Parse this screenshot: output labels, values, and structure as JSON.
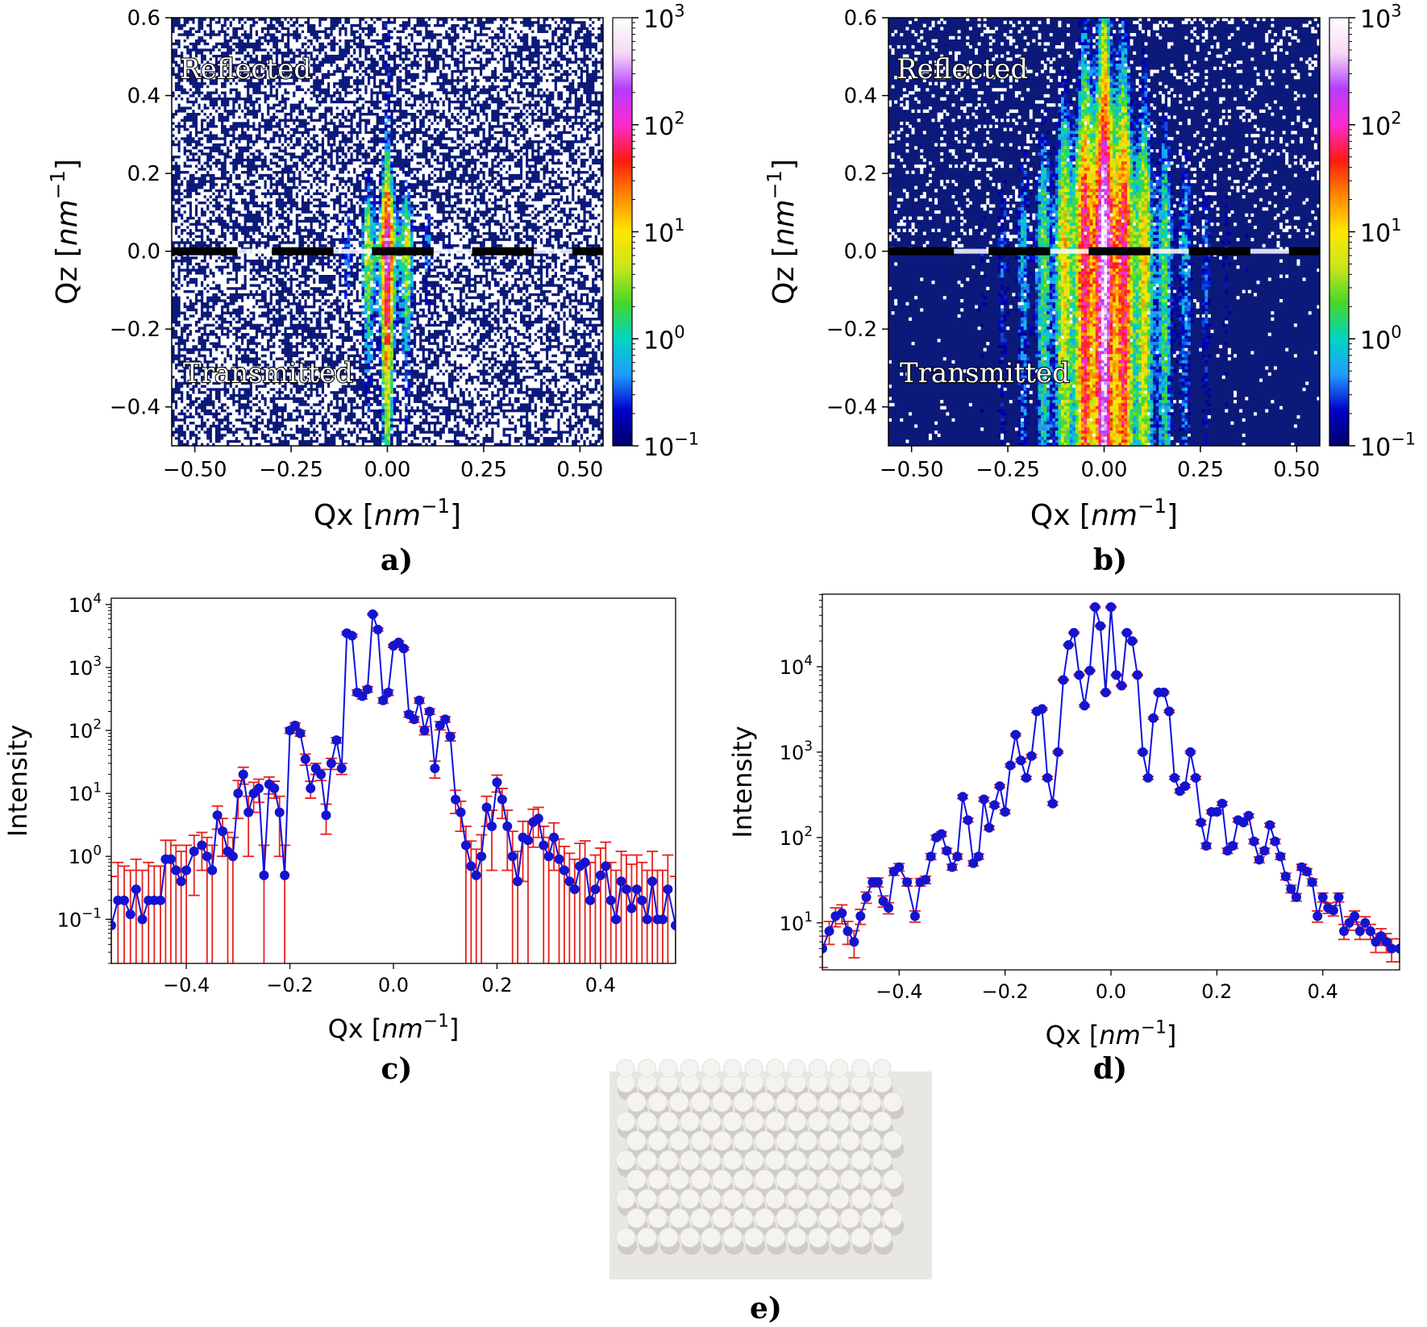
{
  "colors": {
    "scatter_background": "#0b1a7a",
    "noise": "#ffffff",
    "series_line": "#1010e0",
    "series_marker": "#1414d0",
    "errorbar": "#e8201c",
    "beamstop": "#000000"
  },
  "colorbar": {
    "stops": [
      "#00006a",
      "#0000cc",
      "#1f9bff",
      "#00d6c0",
      "#46d62a",
      "#c8e61a",
      "#ffe600",
      "#ff8a00",
      "#ff1a10",
      "#ff2ad0",
      "#b43cff",
      "#f5d8f5",
      "#ffffff"
    ],
    "tick_labels": [
      {
        "base": "10",
        "exp": "3"
      },
      {
        "base": "10",
        "exp": "2"
      },
      {
        "base": "10",
        "exp": "1"
      },
      {
        "base": "10",
        "exp": "0"
      },
      {
        "base": "10",
        "exp": "−1"
      }
    ]
  },
  "chart_data": [
    {
      "id": "a",
      "type": "heatmap",
      "panel_label": "a)",
      "xlabel": "Qx [",
      "xlabel_unit": "nm",
      "xlabel_exp": "−1",
      "xlabel_close": "]",
      "ylabel": "Qz [",
      "ylabel_unit": "nm",
      "ylabel_exp": "−1",
      "ylabel_close": "]",
      "xlim": [
        -0.56,
        0.56
      ],
      "ylim": [
        -0.5,
        0.6
      ],
      "xticks": [
        -0.5,
        -0.25,
        0.0,
        0.25,
        0.5
      ],
      "xtick_labels": [
        "−0.50",
        "−0.25",
        "0.00",
        "0.25",
        "0.50"
      ],
      "yticks": [
        0.6,
        0.4,
        0.2,
        0.0,
        -0.2,
        -0.4
      ],
      "ytick_labels": [
        "0.6",
        "0.4",
        "0.2",
        "0.0",
        "−0.2",
        "−0.4"
      ],
      "annotations": [
        "Reflected",
        "Transmitted"
      ],
      "colorbar_range": [
        0.1,
        1000
      ],
      "scale": "log",
      "peak_intensity": 320,
      "streak_spacing": 0.053,
      "noise_fraction": 0.42
    },
    {
      "id": "b",
      "type": "heatmap",
      "panel_label": "b)",
      "xlabel": "Qx [",
      "xlabel_unit": "nm",
      "xlabel_exp": "−1",
      "xlabel_close": "]",
      "ylabel": "Qz [",
      "ylabel_unit": "nm",
      "ylabel_exp": "−1",
      "ylabel_close": "]",
      "xlim": [
        -0.56,
        0.56
      ],
      "ylim": [
        -0.5,
        0.6
      ],
      "xticks": [
        -0.5,
        -0.25,
        0.0,
        0.25,
        0.5
      ],
      "xtick_labels": [
        "−0.50",
        "−0.25",
        "0.00",
        "0.25",
        "0.50"
      ],
      "yticks": [
        0.6,
        0.4,
        0.2,
        0.0,
        -0.2,
        -0.4
      ],
      "ytick_labels": [
        "0.6",
        "0.4",
        "0.2",
        "0.0",
        "−0.2",
        "−0.4"
      ],
      "annotations": [
        "Reflected",
        "Transmitted"
      ],
      "colorbar_range": [
        0.1,
        1000
      ],
      "scale": "log",
      "peak_intensity": 1000,
      "streak_spacing": 0.053,
      "noise_fraction": 0.12
    },
    {
      "id": "c",
      "type": "line",
      "panel_label": "c)",
      "xlabel": "Qx [",
      "xlabel_unit": "nm",
      "xlabel_exp": "−1",
      "xlabel_close": "]",
      "ylabel": "Intensity",
      "yscale": "log",
      "xlim": [
        -0.545,
        0.545
      ],
      "ylim_log10": [
        -1.7,
        4.1
      ],
      "xticks": [
        -0.4,
        -0.2,
        0.0,
        0.2,
        0.4
      ],
      "xtick_labels": [
        "−0.4",
        "−0.2",
        "0.0",
        "0.2",
        "0.4"
      ],
      "yticks_log10": [
        4,
        3,
        2,
        1,
        0,
        -1
      ],
      "ytick_labels": [
        {
          "base": "10",
          "exp": "4"
        },
        {
          "base": "10",
          "exp": "3"
        },
        {
          "base": "10",
          "exp": "2"
        },
        {
          "base": "10",
          "exp": "1"
        },
        {
          "base": "10",
          "exp": "0"
        },
        {
          "base": "10",
          "exp": "−1"
        }
      ],
      "x": [
        -0.545,
        -0.532,
        -0.52,
        -0.508,
        -0.497,
        -0.485,
        -0.473,
        -0.462,
        -0.45,
        -0.44,
        -0.43,
        -0.42,
        -0.41,
        -0.4,
        -0.385,
        -0.37,
        -0.36,
        -0.35,
        -0.34,
        -0.33,
        -0.32,
        -0.31,
        -0.3,
        -0.29,
        -0.28,
        -0.27,
        -0.26,
        -0.25,
        -0.24,
        -0.23,
        -0.22,
        -0.21,
        -0.2,
        -0.19,
        -0.18,
        -0.17,
        -0.16,
        -0.15,
        -0.14,
        -0.13,
        -0.12,
        -0.11,
        -0.1,
        -0.09,
        -0.08,
        -0.07,
        -0.06,
        -0.05,
        -0.04,
        -0.03,
        -0.02,
        -0.01,
        0.0,
        0.01,
        0.02,
        0.03,
        0.04,
        0.05,
        0.06,
        0.07,
        0.08,
        0.09,
        0.1,
        0.11,
        0.12,
        0.13,
        0.14,
        0.15,
        0.16,
        0.17,
        0.18,
        0.19,
        0.2,
        0.21,
        0.22,
        0.23,
        0.24,
        0.25,
        0.26,
        0.27,
        0.28,
        0.29,
        0.3,
        0.31,
        0.32,
        0.33,
        0.34,
        0.35,
        0.36,
        0.37,
        0.38,
        0.39,
        0.4,
        0.41,
        0.42,
        0.43,
        0.44,
        0.45,
        0.46,
        0.47,
        0.48,
        0.49,
        0.5,
        0.51,
        0.52,
        0.53,
        0.545
      ],
      "y": [
        0.08,
        0.2,
        0.2,
        0.12,
        0.3,
        0.1,
        0.2,
        0.2,
        0.2,
        0.9,
        0.9,
        0.6,
        0.4,
        0.6,
        1.2,
        1.5,
        1.0,
        0.6,
        4.5,
        2.5,
        1.2,
        1.0,
        10,
        20,
        5,
        10,
        12,
        0.5,
        14,
        12,
        5,
        0.5,
        100,
        120,
        90,
        35,
        12,
        25,
        20,
        4.5,
        30,
        70,
        25,
        3500,
        3200,
        400,
        350,
        450,
        7000,
        4000,
        300,
        400,
        2200,
        2500,
        2000,
        180,
        150,
        300,
        100,
        200,
        25,
        120,
        150,
        80,
        8,
        5,
        1.5,
        0.7,
        0.5,
        1,
        6,
        3,
        15,
        8,
        3,
        1,
        0.4,
        2,
        1.8,
        3.5,
        4,
        1.5,
        1.0,
        2,
        0.9,
        0.6,
        0.4,
        0.3,
        0.7,
        0.8,
        0.2,
        0.3,
        0.5,
        0.7,
        0.2,
        0.1,
        0.4,
        0.3,
        0.15,
        0.3,
        0.2,
        0.1,
        0.4,
        0.1,
        0.1,
        0.3,
        0.08
      ],
      "yerr_factor": [
        6,
        4,
        3.5,
        5,
        3,
        6,
        4,
        3.5,
        3.5,
        2,
        2,
        2.5,
        3,
        2.5,
        1.8,
        1.6,
        2,
        2.5,
        1.4,
        1.6,
        2,
        2,
        1.6,
        1.3,
        1.8,
        1.5,
        1.4,
        3,
        1.3,
        1.3,
        1.8,
        3,
        1.1,
        1.1,
        1.1,
        1.2,
        1.3,
        1.2,
        1.2,
        1.5,
        1.2,
        1.1,
        1.2,
        1.05,
        1.05,
        1.1,
        1.1,
        1.1,
        1.03,
        1.05,
        1.1,
        1.1,
        1.05,
        1.05,
        1.05,
        1.1,
        1.1,
        1.1,
        1.15,
        1.1,
        1.3,
        1.15,
        1.1,
        1.15,
        1.4,
        1.5,
        2,
        2.5,
        2.6,
        2.2,
        1.5,
        1.8,
        1.3,
        1.5,
        1.8,
        2.5,
        3,
        1.8,
        2,
        1.6,
        1.5,
        2,
        2,
        1.7,
        2.1,
        2.4,
        2.8,
        3,
        2.3,
        2.2,
        4,
        3.5,
        2.7,
        2.4,
        4,
        6,
        3,
        3.5,
        5,
        3.5,
        4,
        6,
        3,
        6,
        6,
        3.5,
        6
      ]
    },
    {
      "id": "d",
      "type": "line",
      "panel_label": "d)",
      "xlabel": "Qx [",
      "xlabel_unit": "nm",
      "xlabel_exp": "−1",
      "xlabel_close": "]",
      "ylabel": "Intensity",
      "yscale": "log",
      "xlim": [
        -0.545,
        0.545
      ],
      "ylim_log10": [
        0.45,
        4.85
      ],
      "xticks": [
        -0.4,
        -0.2,
        0.0,
        0.2,
        0.4
      ],
      "xtick_labels": [
        "−0.4",
        "−0.2",
        "0.0",
        "0.2",
        "0.4"
      ],
      "yticks_log10": [
        4,
        3,
        2,
        1
      ],
      "ytick_labels": [
        {
          "base": "10",
          "exp": "4"
        },
        {
          "base": "10",
          "exp": "3"
        },
        {
          "base": "10",
          "exp": "2"
        },
        {
          "base": "10",
          "exp": "1"
        }
      ],
      "x": [
        -0.545,
        -0.532,
        -0.52,
        -0.508,
        -0.497,
        -0.485,
        -0.473,
        -0.462,
        -0.45,
        -0.44,
        -0.43,
        -0.42,
        -0.41,
        -0.4,
        -0.385,
        -0.37,
        -0.36,
        -0.35,
        -0.34,
        -0.33,
        -0.32,
        -0.31,
        -0.3,
        -0.29,
        -0.28,
        -0.27,
        -0.26,
        -0.25,
        -0.24,
        -0.23,
        -0.22,
        -0.21,
        -0.2,
        -0.19,
        -0.18,
        -0.17,
        -0.16,
        -0.15,
        -0.14,
        -0.13,
        -0.12,
        -0.11,
        -0.1,
        -0.09,
        -0.08,
        -0.07,
        -0.06,
        -0.05,
        -0.04,
        -0.03,
        -0.02,
        -0.01,
        0.0,
        0.01,
        0.02,
        0.03,
        0.04,
        0.05,
        0.06,
        0.07,
        0.08,
        0.09,
        0.1,
        0.11,
        0.12,
        0.13,
        0.14,
        0.15,
        0.16,
        0.17,
        0.18,
        0.19,
        0.2,
        0.21,
        0.22,
        0.23,
        0.24,
        0.25,
        0.26,
        0.27,
        0.28,
        0.29,
        0.3,
        0.31,
        0.32,
        0.33,
        0.34,
        0.35,
        0.36,
        0.37,
        0.38,
        0.39,
        0.4,
        0.41,
        0.42,
        0.43,
        0.44,
        0.45,
        0.46,
        0.47,
        0.48,
        0.49,
        0.5,
        0.51,
        0.52,
        0.53,
        0.545
      ],
      "y": [
        5,
        8,
        12,
        13,
        8,
        6,
        12,
        20,
        30,
        30,
        18,
        15,
        40,
        45,
        30,
        12,
        30,
        32,
        60,
        100,
        110,
        70,
        45,
        60,
        300,
        160,
        50,
        60,
        280,
        130,
        240,
        400,
        200,
        700,
        1600,
        800,
        500,
        900,
        3000,
        3200,
        500,
        250,
        1000,
        7000,
        18000,
        25000,
        8000,
        3500,
        9000,
        50000,
        30000,
        5000,
        50000,
        8000,
        6000,
        25000,
        20000,
        8000,
        1000,
        500,
        2500,
        5000,
        5000,
        3000,
        500,
        350,
        400,
        1000,
        500,
        150,
        80,
        200,
        200,
        250,
        70,
        80,
        160,
        150,
        180,
        90,
        55,
        70,
        140,
        90,
        60,
        35,
        25,
        20,
        45,
        40,
        30,
        12,
        20,
        15,
        14,
        20,
        8,
        10,
        12,
        8,
        10,
        8,
        6,
        7,
        6,
        5,
        5
      ],
      "yerr_factor": [
        1.4,
        1.3,
        1.25,
        1.25,
        1.3,
        1.35,
        1.2,
        1.15,
        1.12,
        1.12,
        1.15,
        1.15,
        1.1,
        1.1,
        1.1,
        1.15,
        1.1,
        1.1,
        1.08,
        1.06,
        1.06,
        1.07,
        1.08,
        1.07,
        1.05,
        1.05,
        1.07,
        1.07,
        1.05,
        1.05,
        1.05,
        1.04,
        1.05,
        1.04,
        1.03,
        1.04,
        1.04,
        1.04,
        1.03,
        1.03,
        1.04,
        1.05,
        1.03,
        1.02,
        1.02,
        1.02,
        1.02,
        1.03,
        1.02,
        1.02,
        1.02,
        1.02,
        1.02,
        1.02,
        1.02,
        1.02,
        1.02,
        1.02,
        1.03,
        1.04,
        1.03,
        1.03,
        1.03,
        1.03,
        1.04,
        1.05,
        1.04,
        1.03,
        1.04,
        1.06,
        1.07,
        1.05,
        1.05,
        1.05,
        1.07,
        1.07,
        1.05,
        1.05,
        1.05,
        1.06,
        1.08,
        1.07,
        1.05,
        1.06,
        1.08,
        1.09,
        1.1,
        1.1,
        1.08,
        1.08,
        1.09,
        1.15,
        1.12,
        1.14,
        1.14,
        1.12,
        1.2,
        1.18,
        1.15,
        1.2,
        1.18,
        1.2,
        1.25,
        1.22,
        1.25,
        1.3,
        1.3
      ]
    }
  ],
  "sample_image": {
    "panel_label": "e)",
    "rows": 9,
    "columns": 13,
    "background": "#e9e7e2",
    "sphere_color": "#f4f3ef",
    "shadow_color": "#cfccc6"
  }
}
